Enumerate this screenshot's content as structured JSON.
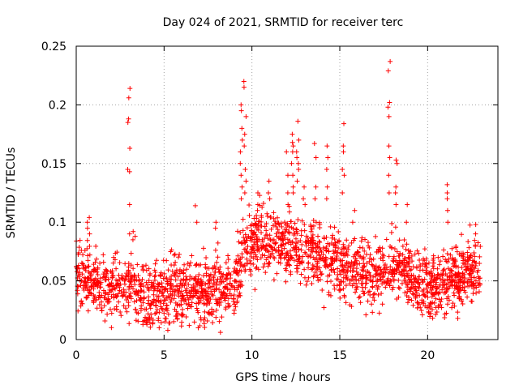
{
  "chart_data": {
    "type": "scatter",
    "title": "Day 024 of 2021, SRMTID for receiver terc",
    "xlabel": "GPS time / hours",
    "ylabel": "SRMTID / TECUs",
    "xlim": [
      0,
      24
    ],
    "ylim": [
      0,
      0.25
    ],
    "xticks": [
      0,
      5,
      10,
      15,
      20
    ],
    "xtick_labels": [
      "0",
      "5",
      "10",
      "15",
      "20"
    ],
    "yticks": [
      0,
      0.05,
      0.1,
      0.15,
      0.2,
      0.25
    ],
    "ytick_labels": [
      "0",
      "0.05",
      "0.1",
      "0.15",
      "0.2",
      "0.25"
    ],
    "grid": true,
    "marker": "+",
    "series_color": "#ff0000",
    "baseline": [
      [
        0.0,
        0.055
      ],
      [
        0.5,
        0.05
      ],
      [
        1.0,
        0.05
      ],
      [
        2.0,
        0.042
      ],
      [
        2.8,
        0.05
      ],
      [
        3.5,
        0.04
      ],
      [
        4.0,
        0.035
      ],
      [
        5.0,
        0.04
      ],
      [
        6.0,
        0.042
      ],
      [
        7.0,
        0.04
      ],
      [
        8.0,
        0.045
      ],
      [
        9.0,
        0.05
      ],
      [
        9.5,
        0.07
      ],
      [
        10.0,
        0.085
      ],
      [
        11.0,
        0.085
      ],
      [
        12.0,
        0.08
      ],
      [
        13.0,
        0.075
      ],
      [
        14.0,
        0.07
      ],
      [
        15.0,
        0.065
      ],
      [
        16.0,
        0.06
      ],
      [
        17.0,
        0.055
      ],
      [
        18.0,
        0.065
      ],
      [
        19.0,
        0.055
      ],
      [
        20.0,
        0.045
      ],
      [
        21.0,
        0.05
      ],
      [
        22.0,
        0.055
      ],
      [
        23.0,
        0.06
      ]
    ],
    "point_count": 2200,
    "time_range": [
      0.0,
      23.0
    ],
    "spread": 0.02,
    "spikes": [
      {
        "x": 0.7,
        "values": [
          0.104,
          0.1,
          0.095,
          0.09
        ]
      },
      {
        "x": 3.0,
        "values": [
          0.214,
          0.206,
          0.188,
          0.185,
          0.163,
          0.145,
          0.143,
          0.115,
          0.09
        ]
      },
      {
        "x": 3.3,
        "values": [
          0.092,
          0.088,
          0.085
        ]
      },
      {
        "x": 6.8,
        "values": [
          0.114,
          0.1
        ]
      },
      {
        "x": 8.0,
        "values": [
          0.1,
          0.095
        ]
      },
      {
        "x": 9.4,
        "values": [
          0.2,
          0.195,
          0.18,
          0.17,
          0.16,
          0.15,
          0.14,
          0.13,
          0.12
        ]
      },
      {
        "x": 9.6,
        "values": [
          0.22,
          0.215,
          0.19,
          0.175,
          0.165,
          0.145,
          0.135,
          0.125
        ]
      },
      {
        "x": 10.3,
        "values": [
          0.125,
          0.115,
          0.11
        ]
      },
      {
        "x": 11.0,
        "values": [
          0.135,
          0.125,
          0.12
        ]
      },
      {
        "x": 12.0,
        "values": [
          0.16,
          0.14,
          0.125,
          0.115
        ]
      },
      {
        "x": 12.3,
        "values": [
          0.175,
          0.168,
          0.165,
          0.16,
          0.15,
          0.14,
          0.13,
          0.125
        ]
      },
      {
        "x": 12.6,
        "values": [
          0.186,
          0.17,
          0.16,
          0.155,
          0.15,
          0.145,
          0.135
        ]
      },
      {
        "x": 13.0,
        "values": [
          0.13,
          0.12,
          0.115
        ]
      },
      {
        "x": 13.6,
        "values": [
          0.167,
          0.155,
          0.13,
          0.12
        ]
      },
      {
        "x": 14.3,
        "values": [
          0.165,
          0.155,
          0.145,
          0.13,
          0.12
        ]
      },
      {
        "x": 15.2,
        "values": [
          0.184,
          0.165,
          0.16,
          0.145,
          0.14,
          0.125
        ]
      },
      {
        "x": 15.8,
        "values": [
          0.11,
          0.1
        ]
      },
      {
        "x": 17.8,
        "values": [
          0.237,
          0.229,
          0.202,
          0.198,
          0.19,
          0.165,
          0.155,
          0.14,
          0.125
        ]
      },
      {
        "x": 18.2,
        "values": [
          0.153,
          0.15,
          0.13,
          0.125,
          0.115
        ]
      },
      {
        "x": 18.8,
        "values": [
          0.115,
          0.1
        ]
      },
      {
        "x": 21.1,
        "values": [
          0.132,
          0.125,
          0.12,
          0.11,
          0.1
        ]
      },
      {
        "x": 22.7,
        "values": [
          0.098,
          0.09
        ]
      }
    ]
  }
}
